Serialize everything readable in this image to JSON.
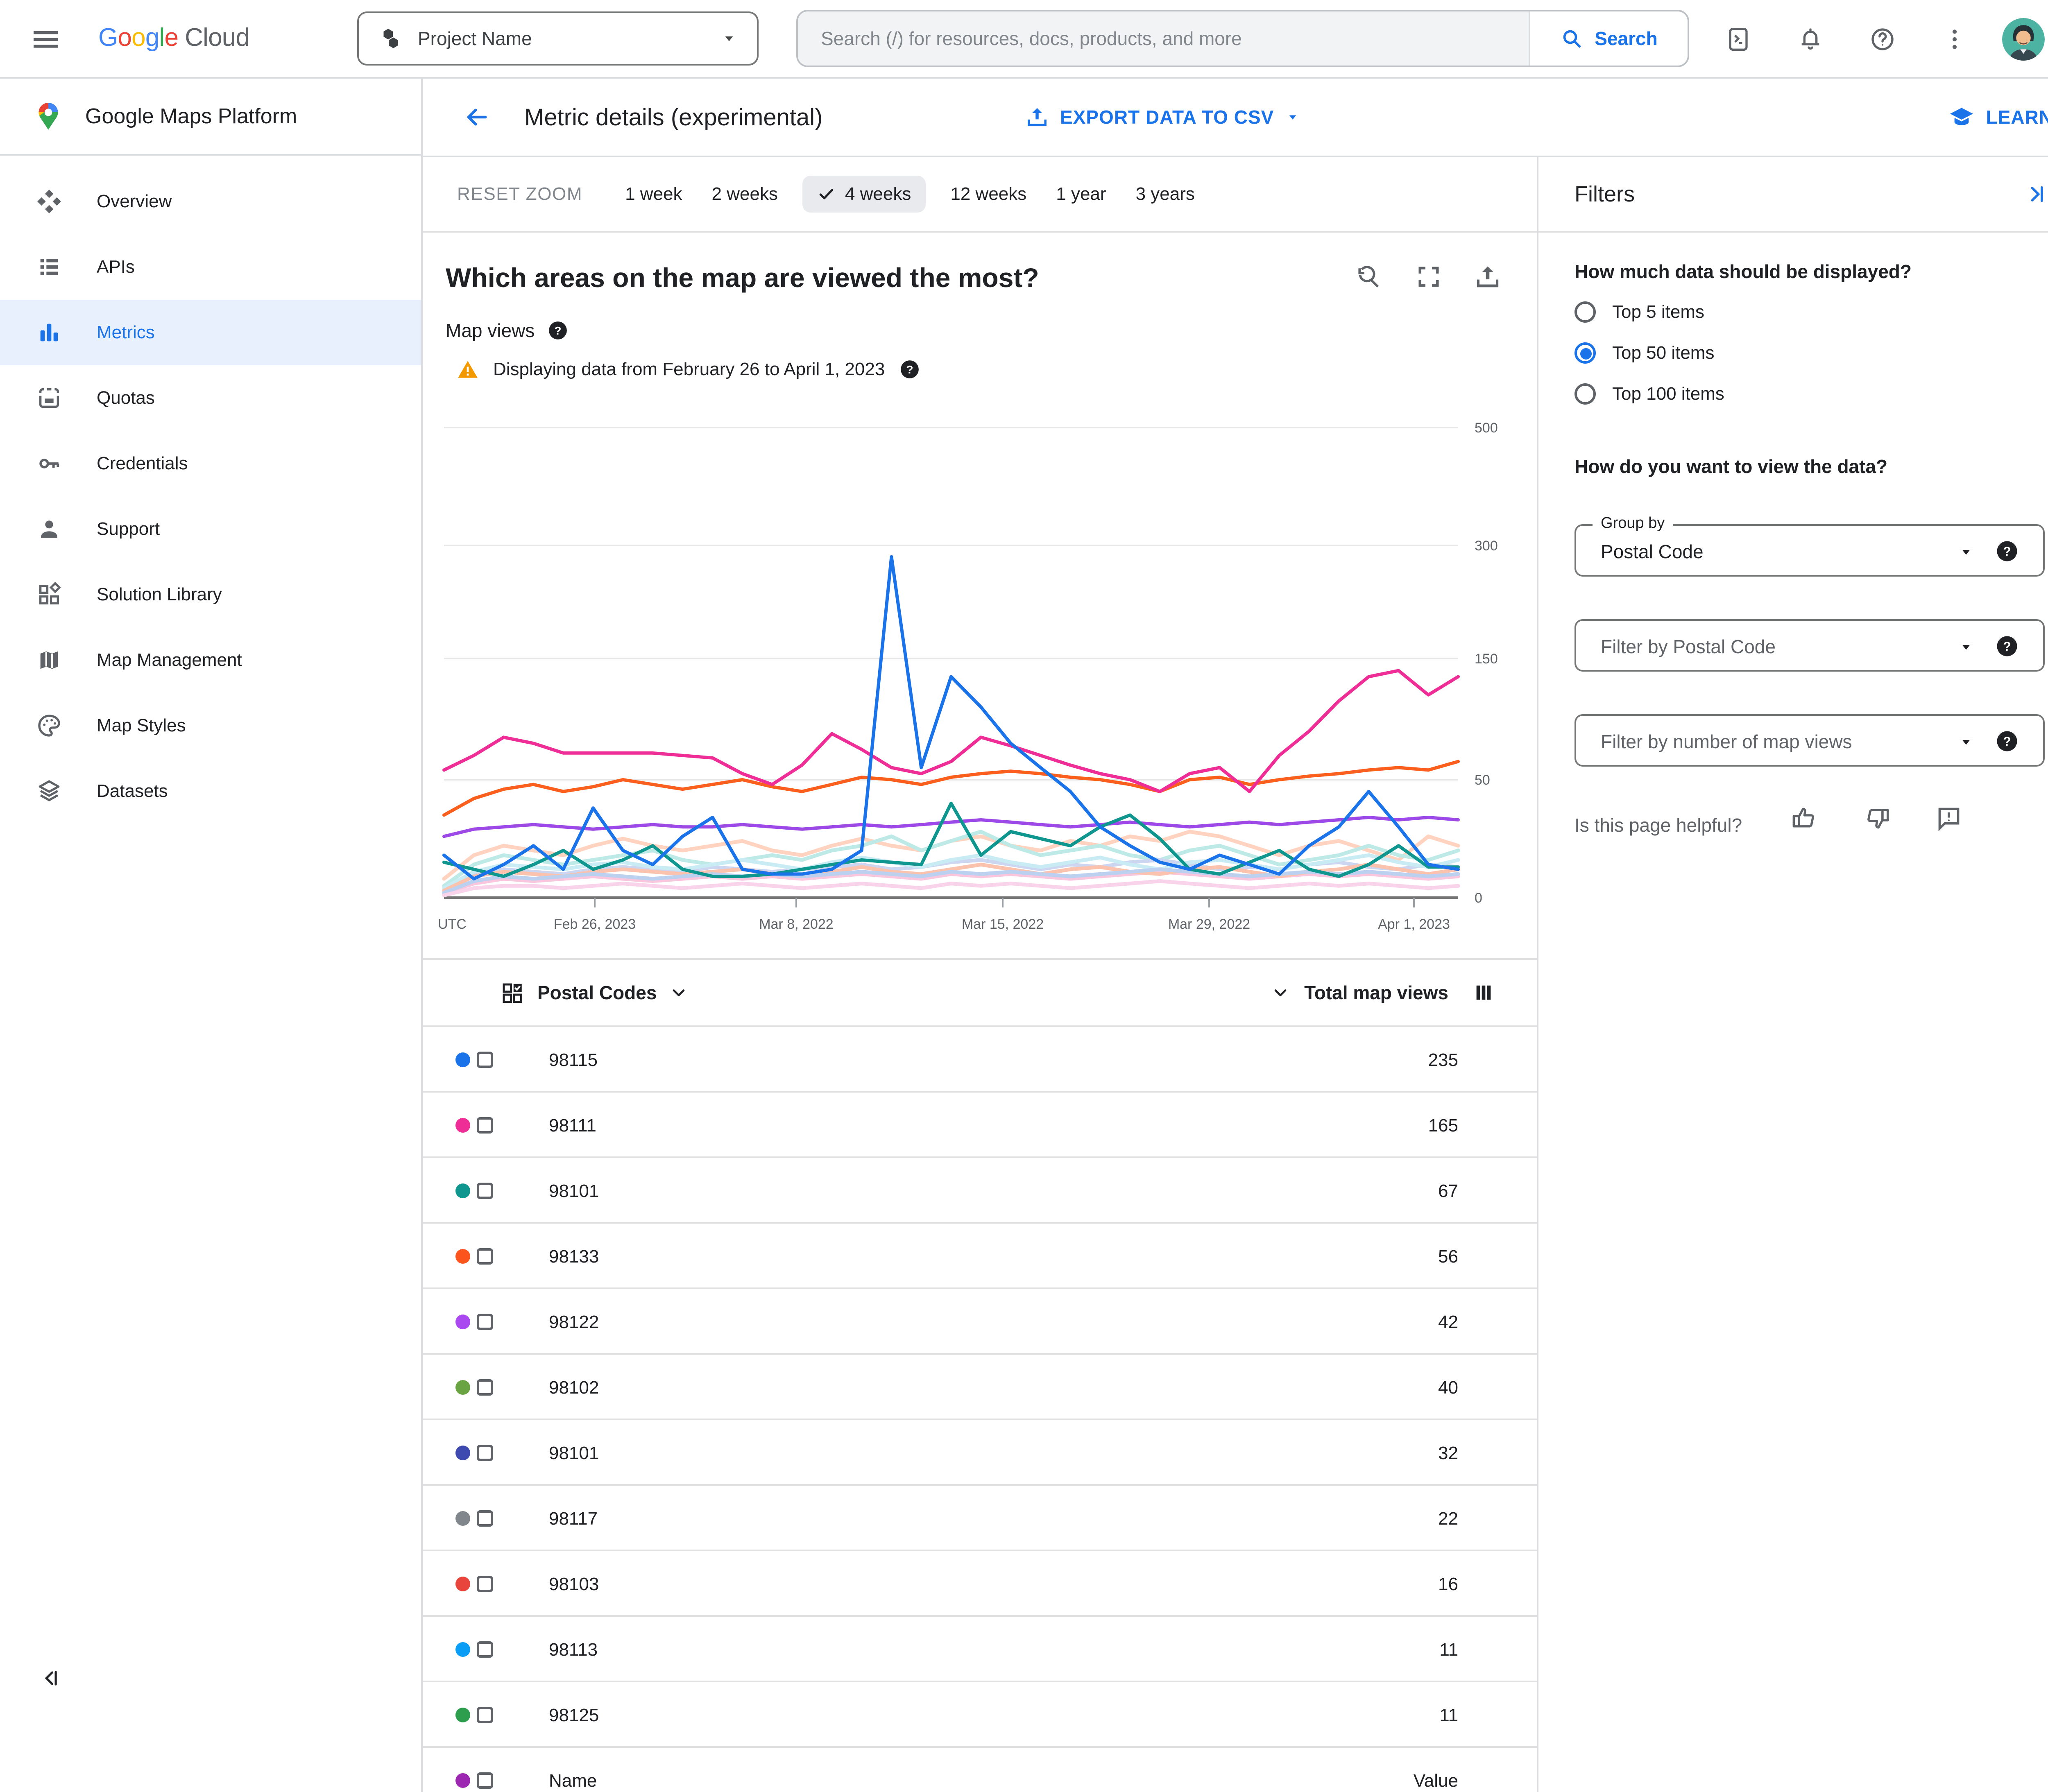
{
  "colors": {
    "accent": "#1a73e8",
    "warning": "#f29900"
  },
  "topbar": {
    "logo_letters": [
      {
        "ch": "G",
        "c": "#4285F4"
      },
      {
        "ch": "o",
        "c": "#EA4335"
      },
      {
        "ch": "o",
        "c": "#FBBC05"
      },
      {
        "ch": "g",
        "c": "#4285F4"
      },
      {
        "ch": "l",
        "c": "#34A853"
      },
      {
        "ch": "e",
        "c": "#EA4335"
      }
    ],
    "logo_cloud": "Cloud",
    "project_name": "Project Name",
    "search_placeholder": "Search (/) for resources, docs, products, and more",
    "search_button": "Search"
  },
  "sidebar": {
    "product_title": "Google Maps Platform",
    "items": [
      {
        "icon": "overview-icon",
        "label": "Overview",
        "active": false
      },
      {
        "icon": "apis-icon",
        "label": "APIs",
        "active": false
      },
      {
        "icon": "metrics-icon",
        "label": "Metrics",
        "active": true
      },
      {
        "icon": "quotas-icon",
        "label": "Quotas",
        "active": false
      },
      {
        "icon": "credentials-icon",
        "label": "Credentials",
        "active": false
      },
      {
        "icon": "support-icon",
        "label": "Support",
        "active": false
      },
      {
        "icon": "solution-library-icon",
        "label": "Solution Library",
        "active": false
      },
      {
        "icon": "map-management-icon",
        "label": "Map Management",
        "active": false
      },
      {
        "icon": "map-styles-icon",
        "label": "Map Styles",
        "active": false
      },
      {
        "icon": "datasets-icon",
        "label": "Datasets",
        "active": false
      }
    ]
  },
  "header": {
    "title": "Metric details (experimental)",
    "export_label": "EXPORT DATA TO CSV",
    "learn_label": "LEARN"
  },
  "controls": {
    "reset": "RESET ZOOM",
    "ranges": [
      {
        "label": "1 week",
        "selected": false
      },
      {
        "label": "2 weeks",
        "selected": false
      },
      {
        "label": "4 weeks",
        "selected": true
      },
      {
        "label": "12 weeks",
        "selected": false
      },
      {
        "label": "1 year",
        "selected": false
      },
      {
        "label": "3 years",
        "selected": false
      }
    ]
  },
  "chart": {
    "question": "Which areas on the map are viewed the most?",
    "metric_label": "Map views",
    "warning": "Displaying data from February 26 to April 1, 2023",
    "utc_label": "UTC"
  },
  "chart_data": {
    "type": "line",
    "title": "Which areas on the map are viewed the most?",
    "ylabel": "Map views",
    "y_axis_ticks": [
      0,
      50,
      150,
      300,
      500
    ],
    "x_axis_ticks": [
      "Feb 26, 2023",
      "Mar 8, 2022",
      "Mar 15, 2022",
      "Mar 29, 2022",
      "Apr 1, 2023"
    ],
    "legend_position": "table-below",
    "grid": true,
    "series": [
      {
        "name": "98115",
        "color": "#1a73e8",
        "values": [
          18,
          8,
          14,
          22,
          12,
          38,
          20,
          14,
          26,
          34,
          12,
          10,
          10,
          12,
          20,
          285,
          60,
          135,
          110,
          80,
          60,
          45,
          30,
          22,
          15,
          12,
          18,
          14,
          10,
          22,
          30,
          45,
          30,
          14,
          12
        ]
      },
      {
        "name": "98111",
        "color": "#ee2e96",
        "values": [
          58,
          70,
          85,
          80,
          72,
          72,
          72,
          72,
          70,
          68,
          55,
          48,
          62,
          88,
          75,
          60,
          55,
          65,
          85,
          78,
          70,
          62,
          55,
          50,
          45,
          55,
          60,
          45,
          70,
          90,
          115,
          135,
          140,
          120,
          135
        ]
      },
      {
        "name": "98101",
        "color": "#0f968f",
        "values": [
          15,
          12,
          9,
          14,
          20,
          12,
          16,
          22,
          12,
          9,
          9,
          10,
          12,
          14,
          16,
          15,
          14,
          40,
          18,
          28,
          25,
          22,
          30,
          35,
          25,
          12,
          10,
          15,
          20,
          12,
          9,
          14,
          22,
          13,
          13
        ]
      },
      {
        "name": "98133",
        "color": "#fb5f1d",
        "values": [
          35,
          42,
          46,
          48,
          45,
          47,
          50,
          48,
          46,
          48,
          50,
          47,
          45,
          48,
          52,
          50,
          48,
          52,
          55,
          57,
          55,
          52,
          50,
          48,
          45,
          50,
          52,
          48,
          50,
          53,
          55,
          58,
          60,
          58,
          65
        ]
      },
      {
        "name": "98122",
        "color": "#9d49e8",
        "values": [
          26,
          29,
          30,
          31,
          30,
          29,
          30,
          31,
          30,
          30,
          31,
          30,
          29,
          30,
          31,
          30,
          31,
          32,
          33,
          32,
          31,
          30,
          31,
          32,
          31,
          30,
          31,
          32,
          31,
          32,
          33,
          34,
          33,
          34,
          33
        ]
      }
    ],
    "background_series": [
      {
        "name": "other-postal-code",
        "color": "#ffd3bf",
        "values": [
          8,
          18,
          22,
          20,
          18,
          22,
          25,
          22,
          20,
          22,
          24,
          20,
          18,
          22,
          25,
          22,
          20,
          24,
          26,
          22,
          20,
          24,
          22,
          26,
          24,
          28,
          26,
          22,
          18,
          22,
          24,
          20,
          16,
          26,
          22
        ]
      },
      {
        "name": "other-postal-code",
        "color": "#bde9e6",
        "values": [
          5,
          14,
          18,
          16,
          14,
          16,
          18,
          20,
          16,
          14,
          16,
          18,
          16,
          20,
          22,
          26,
          20,
          24,
          28,
          22,
          18,
          20,
          22,
          18,
          16,
          20,
          22,
          18,
          14,
          16,
          18,
          22,
          18,
          16,
          20
        ]
      },
      {
        "name": "other-postal-code",
        "color": "#ccd6f1",
        "values": [
          3,
          10,
          12,
          11,
          10,
          12,
          13,
          12,
          11,
          13,
          12,
          11,
          12,
          13,
          14,
          12,
          13,
          15,
          16,
          14,
          12,
          14,
          13,
          15,
          16,
          14,
          12,
          13,
          12,
          14,
          15,
          13,
          12,
          14,
          13
        ]
      },
      {
        "name": "other-postal-code",
        "color": "#f9c6dd",
        "values": [
          2,
          6,
          8,
          7,
          8,
          9,
          8,
          7,
          8,
          9,
          8,
          9,
          8,
          9,
          10,
          9,
          8,
          10,
          9,
          10,
          9,
          8,
          9,
          10,
          11,
          10,
          9,
          8,
          9,
          10,
          9,
          10,
          9,
          8,
          9
        ]
      },
      {
        "name": "other-postal-code",
        "color": "#c9ecf4",
        "values": [
          4,
          11,
          14,
          13,
          12,
          14,
          15,
          13,
          12,
          14,
          16,
          14,
          12,
          15,
          17,
          15,
          13,
          16,
          18,
          15,
          13,
          15,
          17,
          14,
          12,
          15,
          16,
          14,
          12,
          14,
          16,
          18,
          15,
          13,
          16
        ]
      },
      {
        "name": "other-postal-code",
        "color": "#fbc2ae",
        "values": [
          3,
          9,
          11,
          10,
          9,
          11,
          12,
          11,
          10,
          11,
          12,
          10,
          9,
          11,
          13,
          11,
          10,
          12,
          14,
          12,
          10,
          12,
          13,
          11,
          10,
          12,
          13,
          11,
          9,
          11,
          12,
          14,
          12,
          10,
          12
        ]
      },
      {
        "name": "other-postal-code",
        "color": "#bcd0f0",
        "values": [
          2,
          7,
          9,
          8,
          9,
          10,
          9,
          8,
          9,
          10,
          9,
          10,
          9,
          10,
          11,
          10,
          9,
          11,
          10,
          11,
          10,
          9,
          10,
          11,
          12,
          11,
          10,
          9,
          10,
          11,
          10,
          11,
          10,
          9,
          10
        ]
      },
      {
        "name": "other-postal-code",
        "color": "#f8d3ea",
        "values": [
          1,
          4,
          5,
          5,
          4,
          5,
          6,
          5,
          4,
          5,
          6,
          5,
          4,
          5,
          6,
          5,
          4,
          6,
          5,
          6,
          5,
          4,
          5,
          6,
          7,
          6,
          5,
          4,
          5,
          6,
          5,
          6,
          5,
          4,
          5
        ]
      }
    ]
  },
  "table": {
    "group_header": "Postal Codes",
    "value_header": "Total map views",
    "rows": [
      {
        "color": "#1a73e8",
        "label": "98115",
        "value": "235"
      },
      {
        "color": "#ee2e96",
        "label": "98111",
        "value": "165"
      },
      {
        "color": "#0f968f",
        "label": "98101",
        "value": "67"
      },
      {
        "color": "#fb551d",
        "label": "98133",
        "value": "56"
      },
      {
        "color": "#ab49f0",
        "label": "98122",
        "value": "42"
      },
      {
        "color": "#6aa341",
        "label": "98102",
        "value": "40"
      },
      {
        "color": "#3e4aaf",
        "label": "98101",
        "value": "32"
      },
      {
        "color": "#80868b",
        "label": "98117",
        "value": "22"
      },
      {
        "color": "#e8453c",
        "label": "98103",
        "value": "16"
      },
      {
        "color": "#0a9df5",
        "label": "98113",
        "value": "11"
      },
      {
        "color": "#2d9e4e",
        "label": "98125",
        "value": "11"
      },
      {
        "color": "#9c27b0",
        "label": "Name",
        "value": "Value"
      }
    ]
  },
  "filters": {
    "title": "Filters",
    "q_display": "How much data should be displayed?",
    "display_options": [
      {
        "label": "Top 5 items",
        "selected": false
      },
      {
        "label": "Top 50 items",
        "selected": true
      },
      {
        "label": "Top 100 items",
        "selected": false
      }
    ],
    "q_view": "How do you want to view the data?",
    "group_by_label": "Group by",
    "group_by_value": "Postal Code",
    "filter_postal_placeholder": "Filter by Postal Code",
    "filter_views_placeholder": "Filter by number of map views",
    "helpful_question": "Is this page helpful?"
  }
}
